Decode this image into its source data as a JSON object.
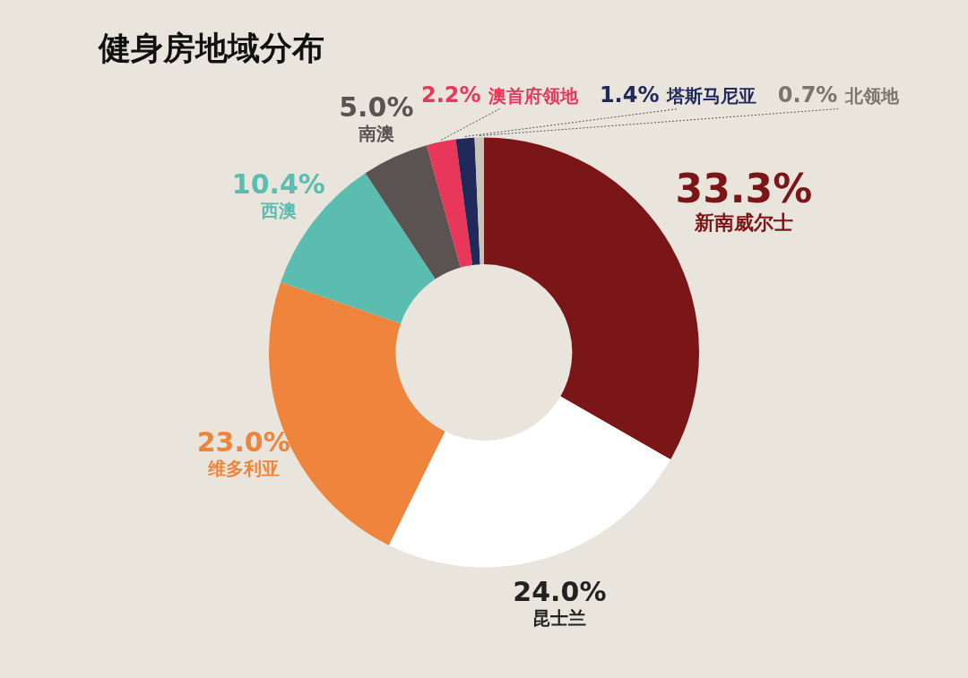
{
  "chart_data": {
    "type": "donut",
    "title": "健身房地域分布",
    "categories": [
      "新南威尔士",
      "昆士兰",
      "维多利亚",
      "西澳",
      "南澳",
      "澳首府领地",
      "塔斯马尼亚",
      "北领地"
    ],
    "values": [
      33.3,
      24.0,
      23.0,
      10.4,
      5.0,
      2.2,
      1.4,
      0.7
    ],
    "value_labels": [
      "33.3%",
      "24.0%",
      "23.0%",
      "10.4%",
      "5.0%",
      "2.2%",
      "1.4%",
      "0.7%"
    ],
    "colors": [
      "#7a1518",
      "#ffffff",
      "#ef843c",
      "#5bbcb0",
      "#5a5352",
      "#e8375a",
      "#1f2a5a",
      "#c9c4b8"
    ],
    "legend": false
  }
}
